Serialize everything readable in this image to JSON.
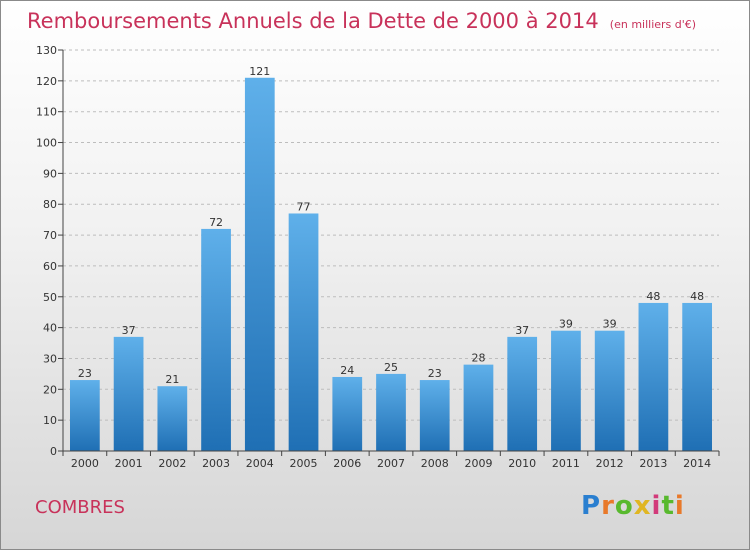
{
  "header": {
    "title": "Remboursements Annuels de la Dette de 2000 à 2014",
    "unit": "(en milliers d'€)"
  },
  "footer": {
    "commune": "COMBRES",
    "logo": "Proxiti"
  },
  "colors": {
    "title": "#c8325a",
    "bar_top": "#5fb0ea",
    "bar_bottom": "#1f6fb4"
  },
  "chart_data": {
    "type": "bar",
    "title": "Remboursements Annuels de la Dette de 2000 à 2014",
    "xlabel": "",
    "ylabel": "",
    "categories": [
      "2000",
      "2001",
      "2002",
      "2003",
      "2004",
      "2005",
      "2006",
      "2007",
      "2008",
      "2009",
      "2010",
      "2011",
      "2012",
      "2013",
      "2014"
    ],
    "values": [
      23,
      37,
      21,
      72,
      121,
      77,
      24,
      25,
      23,
      28,
      37,
      39,
      39,
      48,
      48
    ],
    "ylim": [
      0,
      130
    ],
    "yticks": [
      0,
      10,
      20,
      30,
      40,
      50,
      60,
      70,
      80,
      90,
      100,
      110,
      120,
      130
    ],
    "grid": true,
    "legend": "none"
  }
}
